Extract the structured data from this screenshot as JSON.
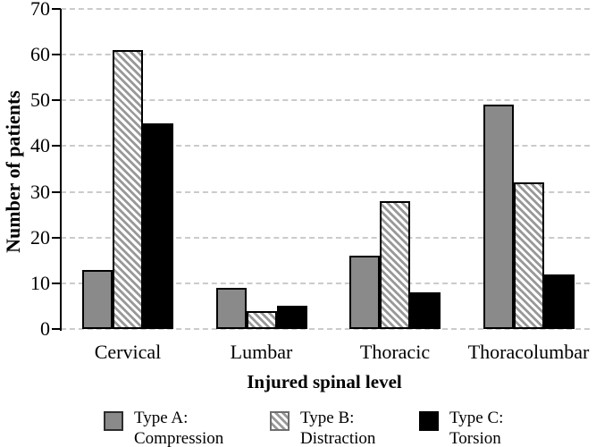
{
  "chart_data": {
    "type": "bar",
    "title": "",
    "xlabel": "Injured spinal level",
    "ylabel": "Number of patients",
    "categories": [
      "Cervical",
      "Lumbar",
      "Thoracic",
      "Thoracolumbar"
    ],
    "series": [
      {
        "name": "Type A: Compression",
        "legend_line1": "Type A:",
        "legend_line2": "Compression",
        "style": "solid-gray",
        "color": "#8a8a8a",
        "values": [
          13,
          9,
          16,
          49
        ]
      },
      {
        "name": "Type B: Distraction",
        "legend_line1": "Type B:",
        "legend_line2": "Distraction",
        "style": "hatched",
        "color": "#ffffff",
        "hatch_color": "#999999",
        "values": [
          61,
          4,
          28,
          32
        ]
      },
      {
        "name": "Type C: Torsion",
        "legend_line1": "Type C:",
        "legend_line2": "Torsion",
        "style": "solid-black",
        "color": "#000000",
        "values": [
          45,
          5,
          8,
          12
        ]
      }
    ],
    "ylim": [
      0,
      70
    ],
    "yticks": [
      0,
      10,
      20,
      30,
      40,
      50,
      60,
      70
    ],
    "grid": "horizontal-dashed",
    "legend_position": "bottom",
    "colors": {
      "gridline": "#cbcbcb",
      "axis": "#000000",
      "bar_border": "#000000",
      "background": "#ffffff"
    }
  }
}
